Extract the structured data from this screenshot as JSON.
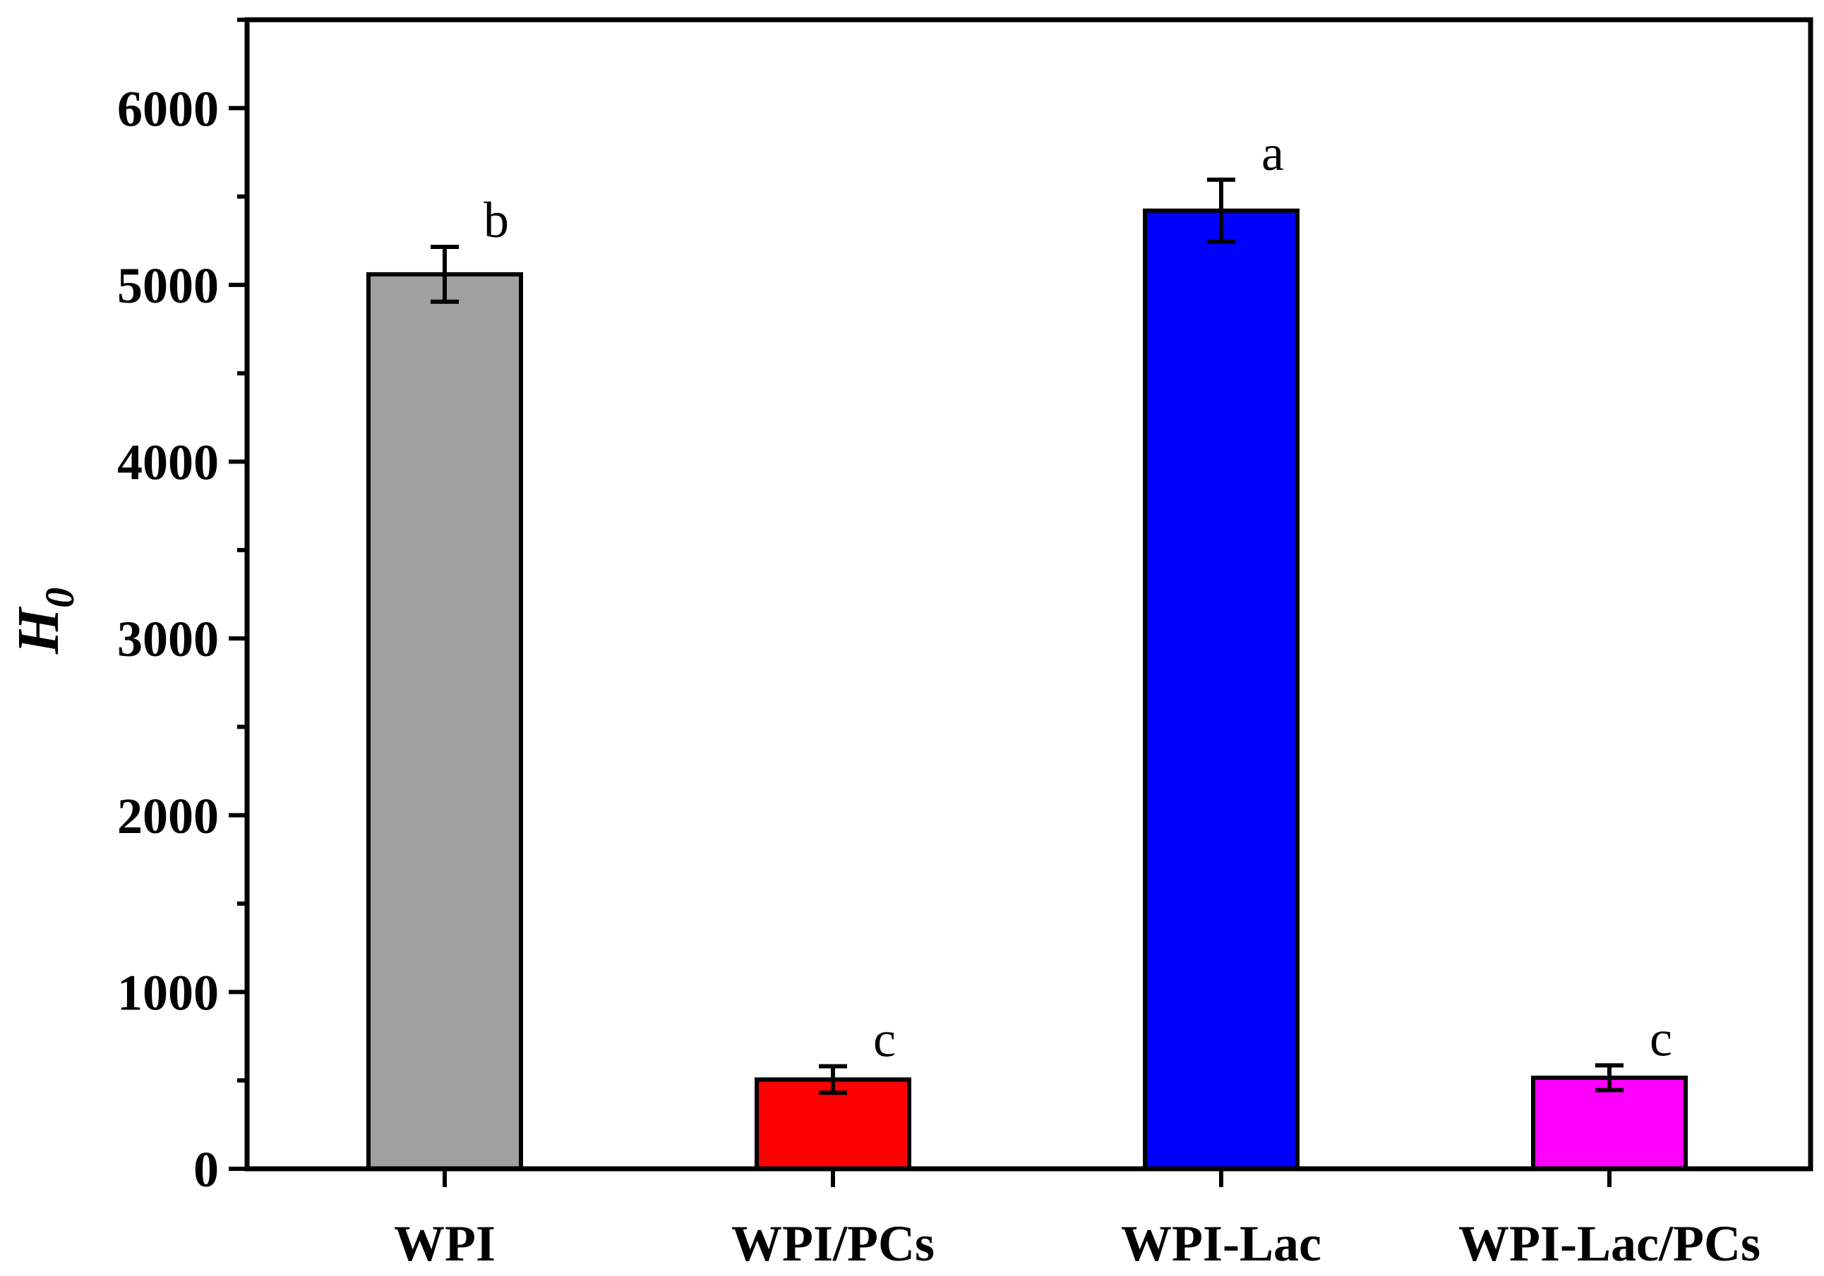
{
  "chart_data": {
    "type": "bar",
    "title": "",
    "xlabel": "",
    "ylabel": "H",
    "ylabel_subscript": "0",
    "ylim": [
      0,
      6500
    ],
    "yticks": [
      0,
      1000,
      2000,
      3000,
      4000,
      5000,
      6000
    ],
    "categories": [
      "WPI",
      "WPI/PCs",
      "WPI-Lac",
      "WPI-Lac/PCs"
    ],
    "values": [
      5060,
      505,
      5420,
      515
    ],
    "errors": [
      155,
      75,
      175,
      70
    ],
    "significance": [
      "b",
      "c",
      "a",
      "c"
    ],
    "colors": [
      "#a0a0a0",
      "#ff0000",
      "#0000ff",
      "#ff00ff"
    ],
    "grid": false,
    "legend": "none"
  }
}
